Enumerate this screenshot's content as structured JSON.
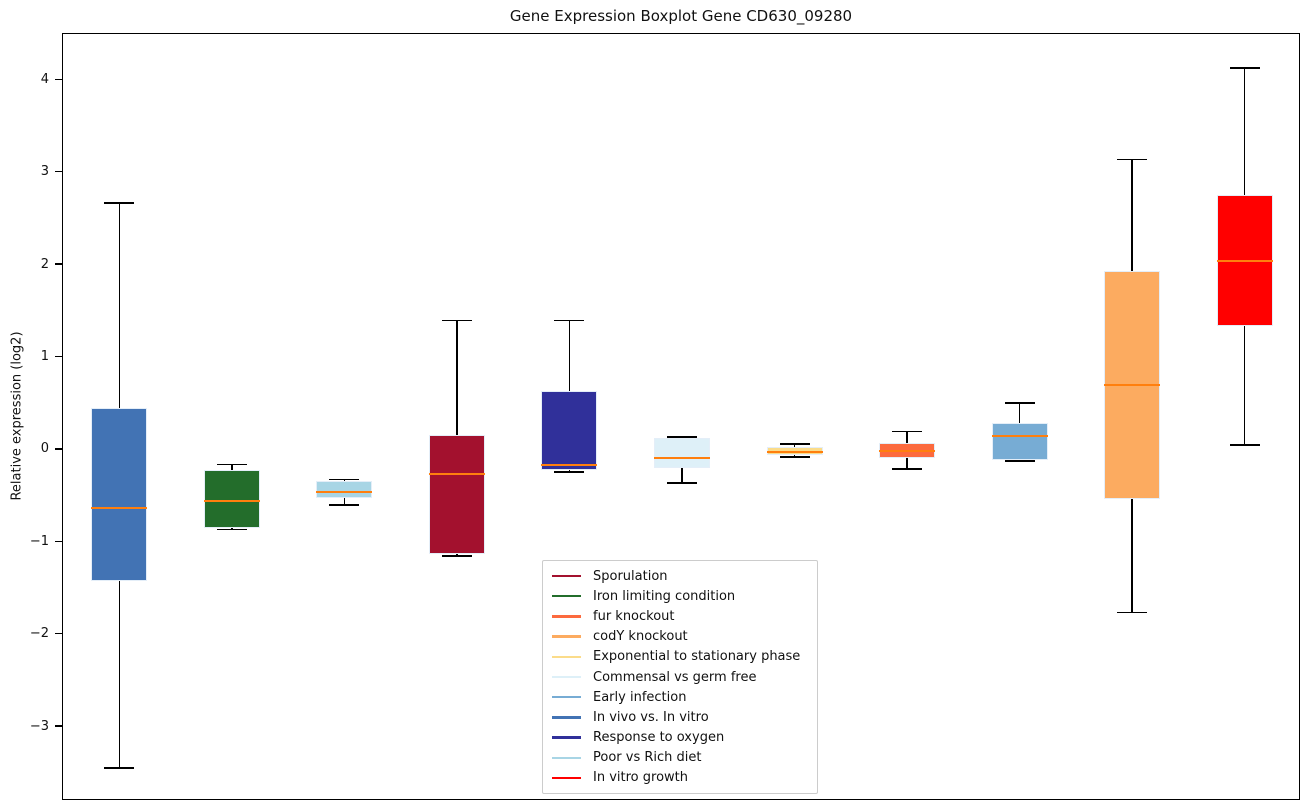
{
  "figure": {
    "title": "Gene Expression Boxplot Gene CD630_09280"
  },
  "chart_data": {
    "type": "boxplot",
    "title": "Gene Expression Boxplot Gene CD630_09280",
    "xlabel": "",
    "ylabel": "Relative expression (log2)",
    "ylim": [
      -3.81,
      4.49
    ],
    "yticks": [
      4,
      3,
      2,
      1,
      0,
      -1,
      -2,
      -3
    ],
    "grid": false,
    "x_axis_labels": "none",
    "whisker_color": "#000000",
    "median_color": "#FF7F0E",
    "box_edge_color": "#E4EEF8",
    "legend_position": "lower center inside axes",
    "series": [
      {
        "name": "In vivo vs. In vitro",
        "color": "#4273B4",
        "whisker_low": -3.45,
        "q1": -1.43,
        "median": -0.64,
        "q3": 0.44,
        "whisker_high": 2.66
      },
      {
        "name": "Iron limiting condition",
        "color": "#236D2B",
        "whisker_low": -0.87,
        "q1": -0.86,
        "median": -0.56,
        "q3": -0.23,
        "whisker_high": -0.17
      },
      {
        "name": "Poor vs Rich diet",
        "color": "#A8D5E5",
        "whisker_low": -0.61,
        "q1": -0.53,
        "median": -0.47,
        "q3": -0.35,
        "whisker_high": -0.33
      },
      {
        "name": "Sporulation",
        "color": "#A3112E",
        "whisker_low": -1.16,
        "q1": -1.14,
        "median": -0.27,
        "q3": 0.15,
        "whisker_high": 1.39
      },
      {
        "name": "Response to oxygen",
        "color": "#30309A",
        "whisker_low": -0.25,
        "q1": -0.23,
        "median": -0.17,
        "q3": 0.63,
        "whisker_high": 1.39
      },
      {
        "name": "Commensal vs germ free",
        "color": "#DEF0F8",
        "whisker_low": -0.37,
        "q1": -0.21,
        "median": -0.1,
        "q3": 0.12,
        "whisker_high": 0.13
      },
      {
        "name": "Exponential to stationary phase",
        "color": "#FBDC8A",
        "whisker_low": -0.09,
        "q1": -0.07,
        "median": -0.03,
        "q3": 0.02,
        "whisker_high": 0.05
      },
      {
        "name": "fur knockout",
        "color": "#FC6A3E",
        "whisker_low": -0.22,
        "q1": -0.1,
        "median": -0.02,
        "q3": 0.06,
        "whisker_high": 0.19
      },
      {
        "name": "Early infection",
        "color": "#77ACD4",
        "whisker_low": -0.13,
        "q1": -0.12,
        "median": 0.14,
        "q3": 0.28,
        "whisker_high": 0.5
      },
      {
        "name": "codY knockout",
        "color": "#FCAB60",
        "whisker_low": -1.77,
        "q1": -0.54,
        "median": 0.69,
        "q3": 1.93,
        "whisker_high": 3.13
      },
      {
        "name": "In vitro growth",
        "color": "#FF0000",
        "whisker_low": 0.04,
        "q1": 1.33,
        "median": 2.03,
        "q3": 2.75,
        "whisker_high": 4.12
      }
    ],
    "legend_entries": [
      {
        "label": "Sporulation",
        "color": "#A3112E"
      },
      {
        "label": "Iron limiting condition",
        "color": "#236D2B"
      },
      {
        "label": "fur knockout",
        "color": "#FC6A3E"
      },
      {
        "label": "codY knockout",
        "color": "#FCAB60"
      },
      {
        "label": "Exponential to stationary phase",
        "color": "#FBDC8A"
      },
      {
        "label": "Commensal vs germ free",
        "color": "#DEF0F8"
      },
      {
        "label": "Early infection",
        "color": "#77ACD4"
      },
      {
        "label": "In vivo vs. In vitro",
        "color": "#4273B4"
      },
      {
        "label": "Response to oxygen",
        "color": "#30309A"
      },
      {
        "label": "Poor vs Rich diet",
        "color": "#A8D5E5"
      },
      {
        "label": "In vitro growth",
        "color": "#FF0000"
      }
    ]
  }
}
